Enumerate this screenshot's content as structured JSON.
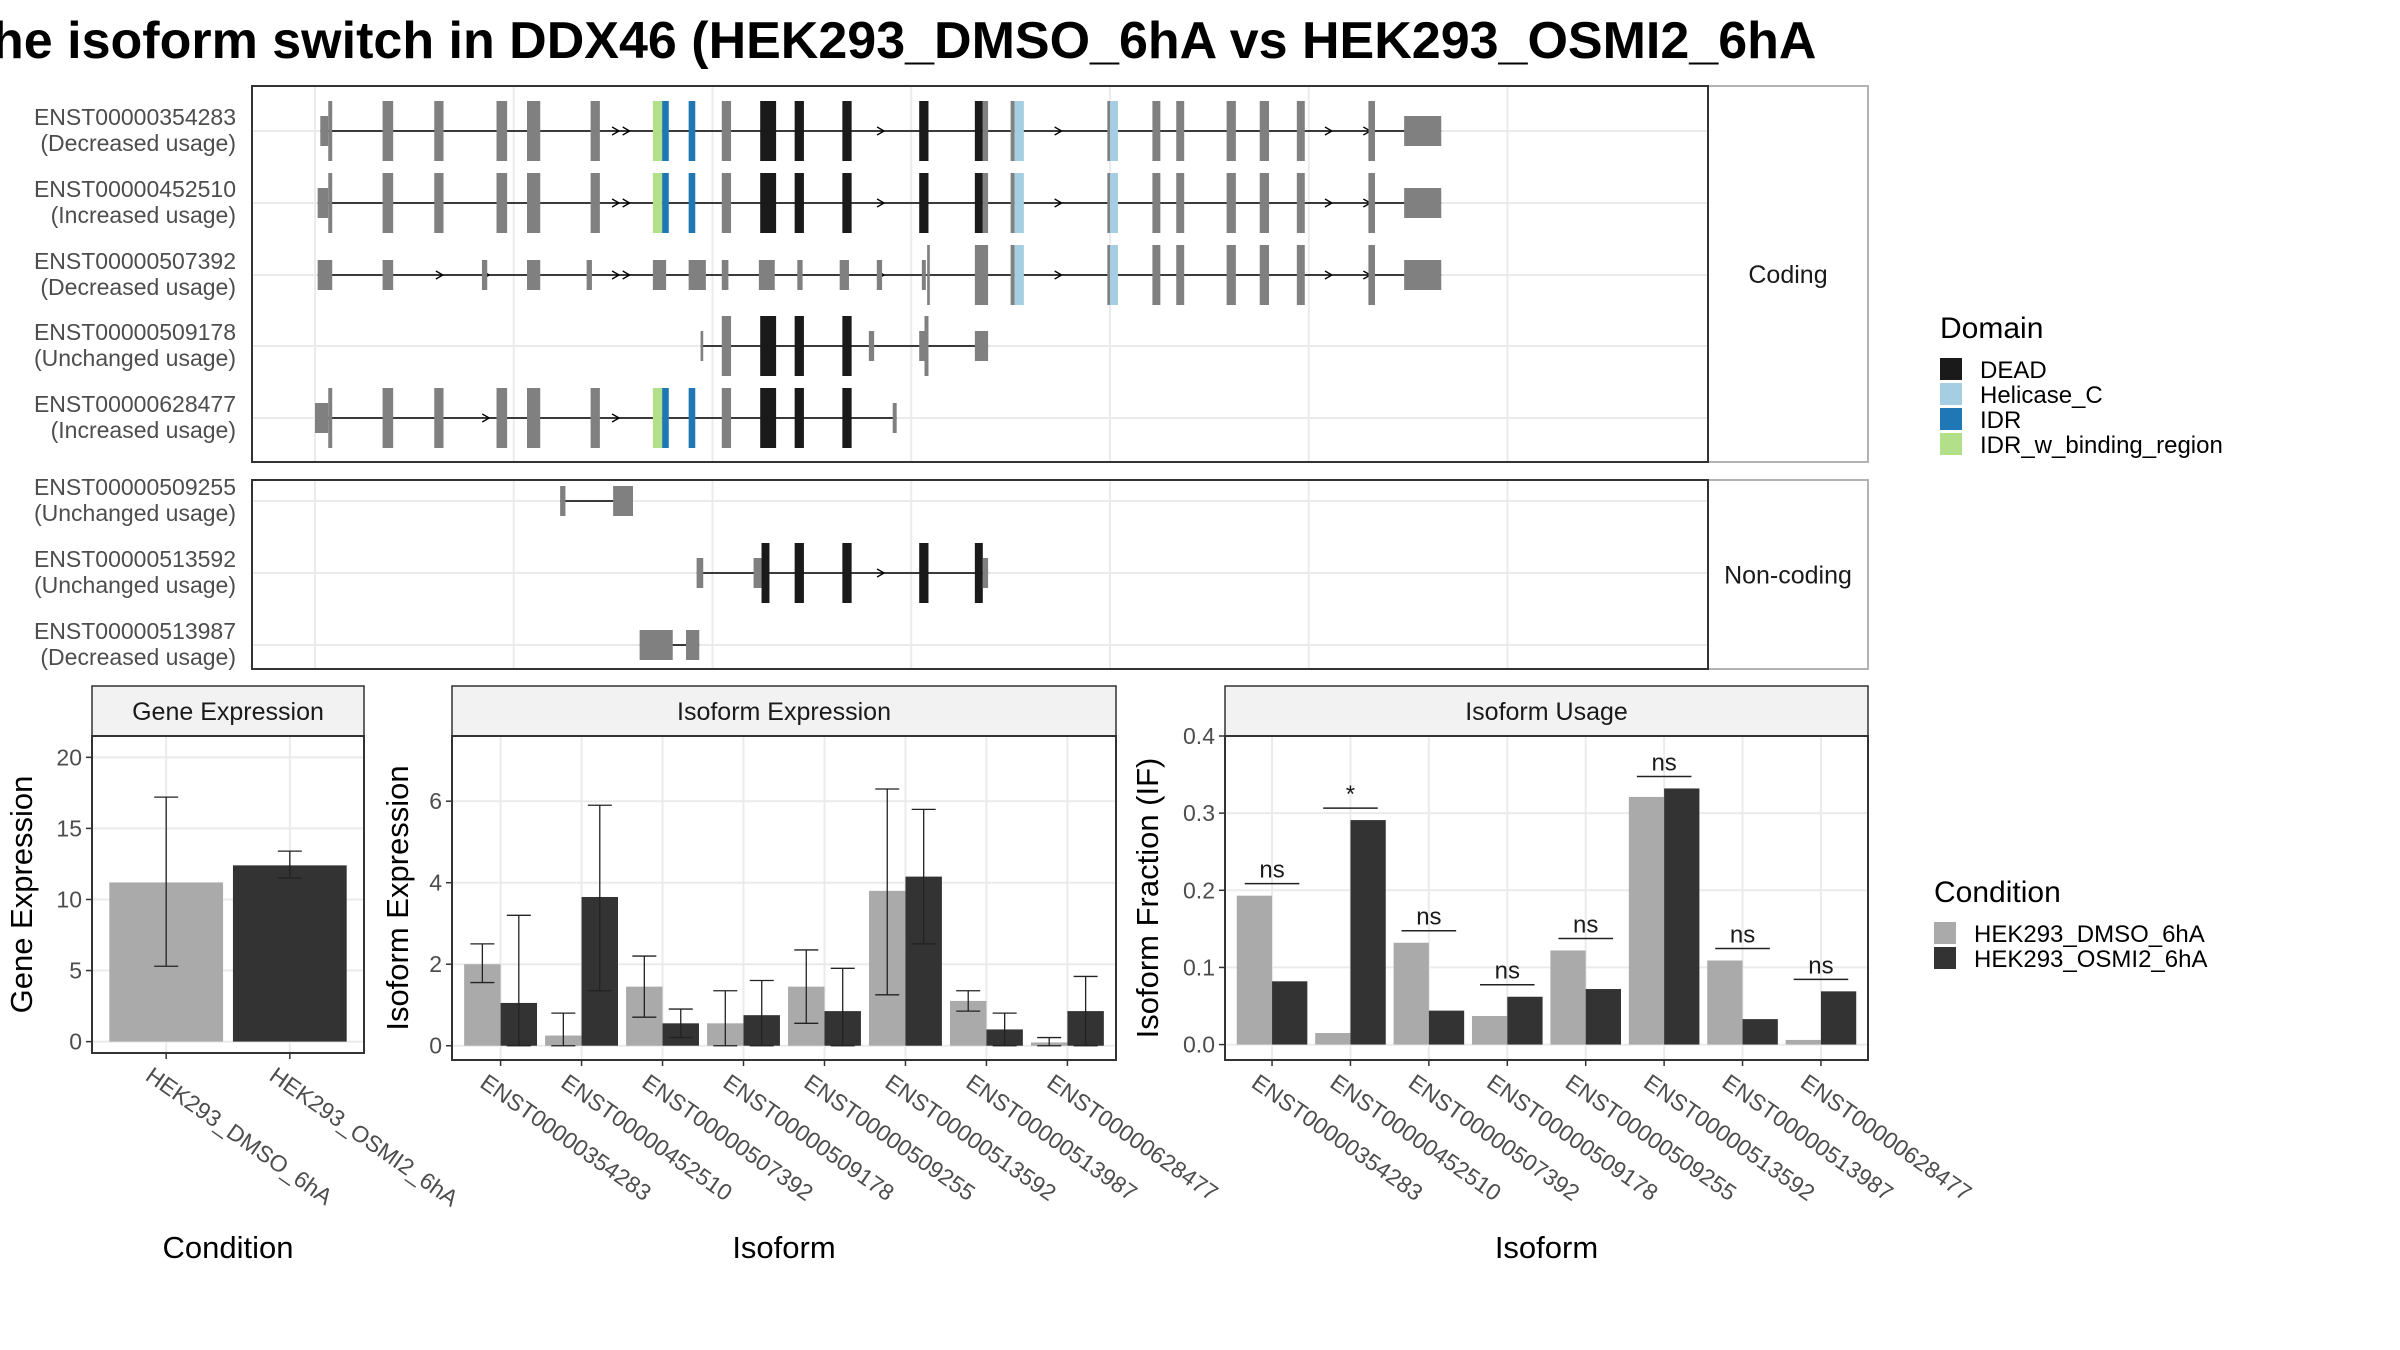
{
  "title": "he isoform switch in DDX46 (HEK293_DMSO_6hA vs HEK293_OSMI2_6hA",
  "colors": {
    "DEAD": "#1a1a1a",
    "Helicase_C": "#a6cee3",
    "IDR": "#1f78b4",
    "IDR_w_binding_region": "#b2df8a",
    "utr": "#808080",
    "cond1": "#aaaaaa",
    "cond2": "#333333",
    "strip": "#f2f2f2"
  },
  "panels": {
    "coding": "Coding",
    "noncoding": "Non-coding"
  },
  "domain_legend": {
    "title": "Domain",
    "items": [
      {
        "label": "DEAD",
        "color": "#1a1a1a"
      },
      {
        "label": "Helicase_C",
        "color": "#a6cee3"
      },
      {
        "label": "IDR",
        "color": "#1f78b4"
      },
      {
        "label": "IDR_w_binding_region",
        "color": "#b2df8a"
      }
    ]
  },
  "condition_legend": {
    "title": "Condition",
    "items": [
      {
        "label": "HEK293_DMSO_6hA",
        "color": "#aaaaaa"
      },
      {
        "label": "HEK293_OSMI2_6hA",
        "color": "#333333"
      }
    ]
  },
  "chart_data": [
    {
      "type": "gene_structure",
      "coord_range": [
        0,
        1000
      ],
      "transcripts": [
        {
          "group": "Coding",
          "id": "ENST00000354283",
          "usage": "(Decreased usage)",
          "exons": [
            [
              4,
              10,
              "u"
            ],
            [
              10,
              13,
              "n"
            ],
            [
              51,
              59,
              "n"
            ],
            [
              90,
              97,
              "n"
            ],
            [
              137,
              145,
              "n"
            ],
            [
              160,
              170,
              "n"
            ],
            [
              208,
              215,
              "n"
            ],
            [
              255,
              262,
              "IDR_w_binding_region"
            ],
            [
              262,
              267,
              "IDR"
            ],
            [
              282,
              287,
              "IDR"
            ],
            [
              307,
              314,
              "n"
            ],
            [
              336,
              348,
              "DEAD"
            ],
            [
              362,
              369,
              "DEAD"
            ],
            [
              398,
              405,
              "DEAD"
            ],
            [
              456,
              463,
              "DEAD"
            ],
            [
              498,
              504,
              "DEAD"
            ],
            [
              504,
              508,
              "n"
            ],
            [
              525,
              528,
              "n"
            ],
            [
              528,
              535,
              "Helicase_C"
            ],
            [
              598,
              600,
              "n"
            ],
            [
              600,
              606,
              "Helicase_C"
            ],
            [
              632,
              638,
              "n"
            ],
            [
              650,
              656,
              "n"
            ],
            [
              688,
              695,
              "n"
            ],
            [
              713,
              720,
              "n"
            ],
            [
              741,
              747,
              "n"
            ],
            [
              795,
              800,
              "n"
            ],
            [
              822,
              850,
              "u"
            ]
          ],
          "arrows": [
            228,
            236,
            428,
            562,
            766,
            795
          ]
        },
        {
          "group": "Coding",
          "id": "ENST00000452510",
          "usage": "(Increased usage)",
          "exons": [
            [
              2,
              10,
              "u"
            ],
            [
              10,
              13,
              "n"
            ],
            [
              51,
              59,
              "n"
            ],
            [
              90,
              97,
              "n"
            ],
            [
              137,
              145,
              "n"
            ],
            [
              160,
              170,
              "n"
            ],
            [
              208,
              215,
              "n"
            ],
            [
              255,
              262,
              "IDR_w_binding_region"
            ],
            [
              262,
              267,
              "IDR"
            ],
            [
              282,
              287,
              "IDR"
            ],
            [
              307,
              314,
              "n"
            ],
            [
              336,
              348,
              "DEAD"
            ],
            [
              362,
              369,
              "DEAD"
            ],
            [
              398,
              405,
              "DEAD"
            ],
            [
              456,
              463,
              "DEAD"
            ],
            [
              498,
              504,
              "DEAD"
            ],
            [
              504,
              508,
              "n"
            ],
            [
              525,
              528,
              "n"
            ],
            [
              528,
              535,
              "Helicase_C"
            ],
            [
              598,
              600,
              "n"
            ],
            [
              600,
              606,
              "Helicase_C"
            ],
            [
              632,
              638,
              "n"
            ],
            [
              650,
              656,
              "n"
            ],
            [
              688,
              695,
              "n"
            ],
            [
              713,
              720,
              "n"
            ],
            [
              741,
              747,
              "n"
            ],
            [
              795,
              800,
              "n"
            ],
            [
              822,
              850,
              "u"
            ]
          ],
          "arrows": [
            228,
            236,
            428,
            562,
            766,
            795
          ]
        },
        {
          "group": "Coding",
          "id": "ENST00000507392",
          "usage": "(Decreased usage)",
          "exons": [
            [
              2,
              13,
              "u"
            ],
            [
              51,
              59,
              "u"
            ],
            [
              126,
              130,
              "u"
            ],
            [
              160,
              170,
              "u"
            ],
            [
              205,
              209,
              "u"
            ],
            [
              255,
              265,
              "u"
            ],
            [
              282,
              295,
              "u"
            ],
            [
              307,
              312,
              "u"
            ],
            [
              335,
              347,
              "u"
            ],
            [
              364,
              368,
              "u"
            ],
            [
              396,
              403,
              "u"
            ],
            [
              424,
              428,
              "u"
            ],
            [
              458,
              461,
              "u"
            ],
            [
              462,
              464,
              "n"
            ],
            [
              498,
              508,
              "n"
            ],
            [
              525,
              528,
              "n"
            ],
            [
              528,
              535,
              "Helicase_C"
            ],
            [
              598,
              600,
              "n"
            ],
            [
              600,
              606,
              "Helicase_C"
            ],
            [
              632,
              638,
              "n"
            ],
            [
              650,
              656,
              "n"
            ],
            [
              688,
              695,
              "n"
            ],
            [
              713,
              720,
              "n"
            ],
            [
              741,
              747,
              "n"
            ],
            [
              795,
              800,
              "n"
            ],
            [
              822,
              850,
              "u"
            ]
          ],
          "arrows": [
            95,
            130,
            228,
            236,
            428,
            562,
            766,
            795
          ]
        },
        {
          "group": "Coding",
          "id": "ENST00000509178",
          "usage": "(Unchanged usage)",
          "exons": [
            [
              291,
              293,
              "u"
            ],
            [
              307,
              314,
              "n"
            ],
            [
              336,
              348,
              "DEAD"
            ],
            [
              362,
              369,
              "DEAD"
            ],
            [
              398,
              405,
              "DEAD"
            ],
            [
              418,
              422,
              "u"
            ],
            [
              456,
              460,
              "u"
            ],
            [
              460,
              463,
              "n"
            ],
            [
              498,
              508,
              "u"
            ]
          ],
          "arrows": []
        },
        {
          "group": "Coding",
          "id": "ENST00000628477",
          "usage": "(Increased usage)",
          "exons": [
            [
              0,
              10,
              "u"
            ],
            [
              10,
              13,
              "n"
            ],
            [
              51,
              59,
              "n"
            ],
            [
              90,
              97,
              "n"
            ],
            [
              137,
              145,
              "n"
            ],
            [
              160,
              170,
              "n"
            ],
            [
              208,
              215,
              "n"
            ],
            [
              255,
              262,
              "IDR_w_binding_region"
            ],
            [
              262,
              267,
              "IDR"
            ],
            [
              282,
              287,
              "IDR"
            ],
            [
              307,
              314,
              "n"
            ],
            [
              336,
              348,
              "DEAD"
            ],
            [
              362,
              369,
              "DEAD"
            ],
            [
              398,
              405,
              "DEAD"
            ],
            [
              436,
              439,
              "u"
            ]
          ],
          "arrows": [
            95,
            130,
            228
          ]
        },
        {
          "group": "Non-coding",
          "id": "ENST00000509255",
          "usage": "(Unchanged usage)",
          "exons": [
            [
              185,
              189,
              "u"
            ],
            [
              225,
              240,
              "u"
            ]
          ],
          "arrows": []
        },
        {
          "group": "Non-coding",
          "id": "ENST00000513592",
          "usage": "(Unchanged usage)",
          "exons": [
            [
              288,
              293,
              "u"
            ],
            [
              331,
              337,
              "u"
            ],
            [
              337,
              343,
              "DEAD"
            ],
            [
              362,
              369,
              "DEAD"
            ],
            [
              398,
              405,
              "DEAD"
            ],
            [
              456,
              463,
              "DEAD"
            ],
            [
              498,
              504,
              "DEAD"
            ],
            [
              504,
              508,
              "u"
            ]
          ],
          "arrows": [
            428
          ]
        },
        {
          "group": "Non-coding",
          "id": "ENST00000513987",
          "usage": "(Decreased usage)",
          "exons": [
            [
              245,
              270,
              "u"
            ],
            [
              280,
              290,
              "u"
            ]
          ],
          "arrows": []
        }
      ]
    },
    {
      "type": "bar",
      "title": "Gene Expression",
      "xlabel": "Condition",
      "ylabel": "Gene Expression",
      "categories": [
        "HEK293_DMSO_6hA",
        "HEK293_OSMI2_6hA"
      ],
      "values": [
        11.2,
        12.4
      ],
      "errors": [
        [
          5.3,
          17.2
        ],
        [
          11.5,
          13.4
        ]
      ],
      "ylim": [
        -0.8,
        21.5
      ],
      "yticks": [
        0,
        5,
        10,
        15,
        20
      ]
    },
    {
      "type": "bar",
      "title": "Isoform Expression",
      "xlabel": "Isoform",
      "ylabel": "Isoform Expression",
      "categories": [
        "ENST00000354283",
        "ENST00000452510",
        "ENST00000507392",
        "ENST00000509178",
        "ENST00000509255",
        "ENST00000513592",
        "ENST00000513987",
        "ENST00000628477"
      ],
      "series": [
        {
          "name": "HEK293_DMSO_6hA",
          "values": [
            2.0,
            0.25,
            1.45,
            0.55,
            1.45,
            3.8,
            1.1,
            0.08
          ],
          "errors": [
            [
              1.55,
              2.5
            ],
            [
              0.0,
              0.8
            ],
            [
              0.7,
              2.2
            ],
            [
              0.0,
              1.35
            ],
            [
              0.55,
              2.35
            ],
            [
              1.25,
              6.3
            ],
            [
              0.85,
              1.35
            ],
            [
              0.0,
              0.2
            ]
          ]
        },
        {
          "name": "HEK293_OSMI2_6hA",
          "values": [
            1.05,
            3.65,
            0.55,
            0.75,
            0.85,
            4.15,
            0.4,
            0.85
          ],
          "errors": [
            [
              0.0,
              3.2
            ],
            [
              1.35,
              5.9
            ],
            [
              0.2,
              0.9
            ],
            [
              0.0,
              1.6
            ],
            [
              0.0,
              1.9
            ],
            [
              2.5,
              5.8
            ],
            [
              0.0,
              0.8
            ],
            [
              0.0,
              1.7
            ]
          ]
        }
      ],
      "ylim": [
        -0.35,
        7.6
      ],
      "yticks": [
        0,
        2,
        4,
        6
      ]
    },
    {
      "type": "bar",
      "title": "Isoform Usage",
      "xlabel": "Isoform",
      "ylabel": "Isoform Fraction (IF)",
      "categories": [
        "ENST00000354283",
        "ENST00000452510",
        "ENST00000507392",
        "ENST00000509178",
        "ENST00000509255",
        "ENST00000513592",
        "ENST00000513987",
        "ENST00000628477"
      ],
      "series": [
        {
          "name": "HEK293_DMSO_6hA",
          "values": [
            0.193,
            0.015,
            0.132,
            0.037,
            0.122,
            0.321,
            0.109,
            0.006
          ]
        },
        {
          "name": "HEK293_OSMI2_6hA",
          "values": [
            0.082,
            0.291,
            0.044,
            0.062,
            0.072,
            0.332,
            0.033,
            0.069
          ]
        }
      ],
      "significance": [
        "ns",
        "*",
        "ns",
        "ns",
        "ns",
        "ns",
        "ns",
        "ns"
      ],
      "ylim": [
        -0.02,
        0.4
      ],
      "yticks": [
        0.0,
        0.1,
        0.2,
        0.3,
        0.4
      ],
      "ytick_labels": [
        "0.0",
        "0.1",
        "0.2",
        "0.3",
        "0.4"
      ]
    }
  ]
}
